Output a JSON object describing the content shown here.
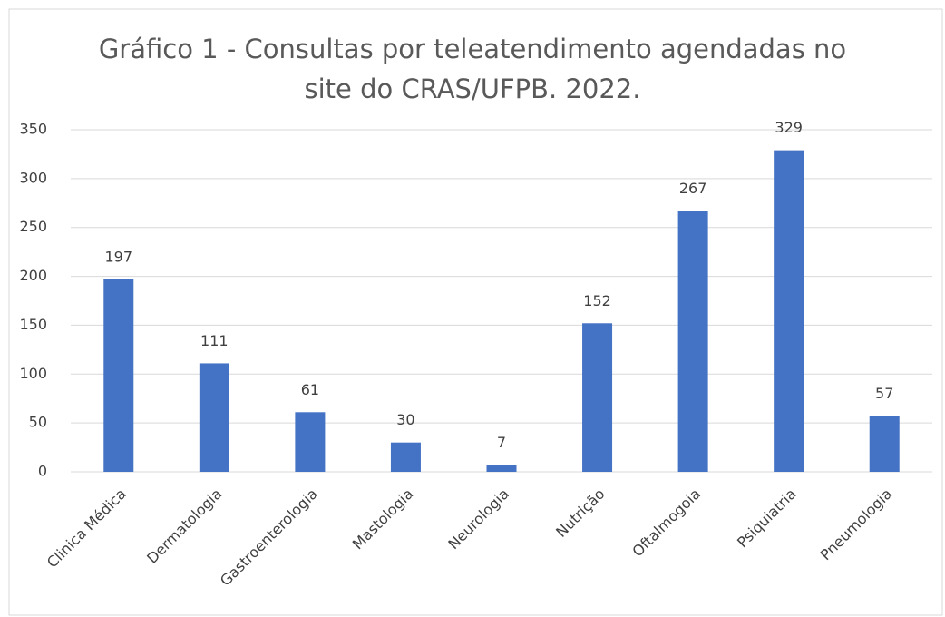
{
  "chart_data": {
    "type": "bar",
    "title": "Gráfico 1 - Consultas por teleatendimento agendadas no site do CRAS/UFPB. 2022.",
    "categories": [
      "Clinica Médica",
      "Dermatologia",
      "Gastroenterologia",
      "Mastologia",
      "Neurologia",
      "Nutrição",
      "Oftalmogoia",
      "Psiquiatria",
      "Pneumologia"
    ],
    "values": [
      197,
      111,
      61,
      30,
      7,
      152,
      267,
      329,
      57
    ],
    "color": "#4472c4",
    "ylim": [
      0,
      350
    ],
    "yticks": [
      0,
      50,
      100,
      150,
      200,
      250,
      300,
      350
    ],
    "grid": true
  }
}
